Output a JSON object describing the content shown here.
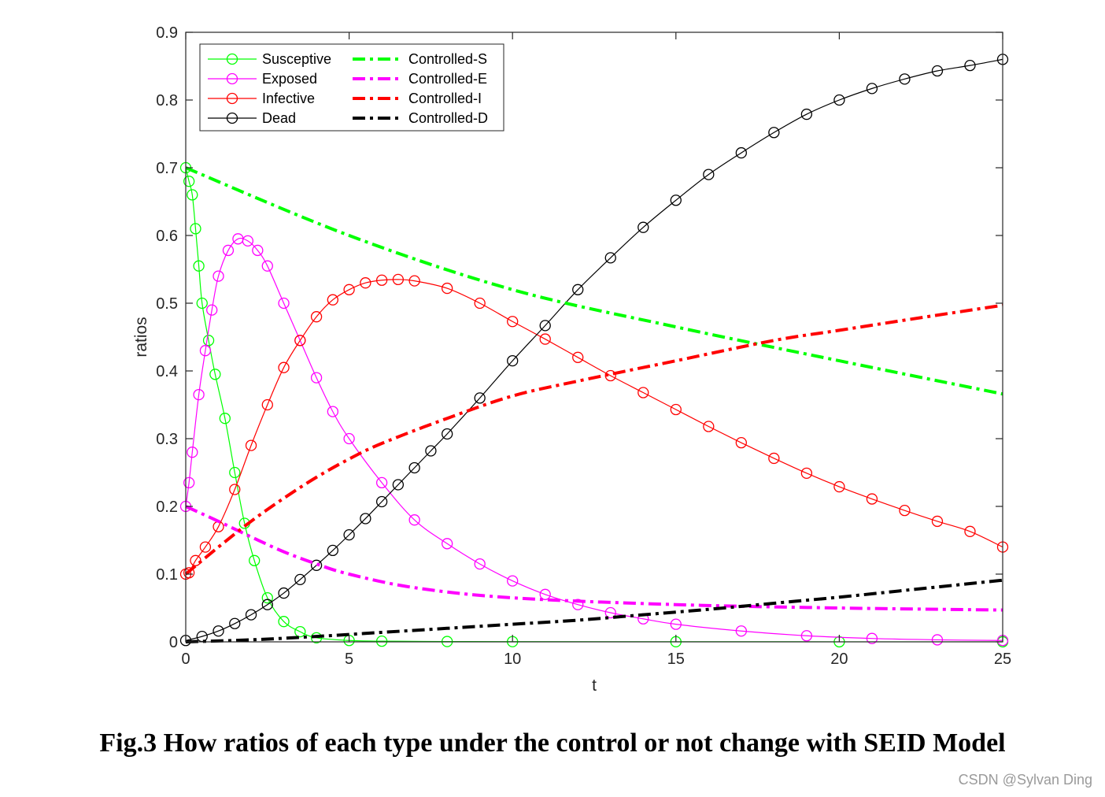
{
  "chart_data": {
    "type": "line",
    "xlabel": "t",
    "ylabel": "ratios",
    "xlim": [
      0,
      25
    ],
    "ylim": [
      0,
      0.9
    ],
    "xticks": [
      0,
      5,
      10,
      15,
      20,
      25
    ],
    "yticks": [
      0,
      0.1,
      0.2,
      0.3,
      0.4,
      0.5,
      0.6,
      0.7,
      0.8,
      0.9
    ],
    "ytick_labels": [
      "0",
      "0.1",
      "0.2",
      "0.3",
      "0.4",
      "0.5",
      "0.6",
      "0.7",
      "0.8",
      "0.9"
    ],
    "grid": false,
    "legend_position": "top-left",
    "series": [
      {
        "name": "Susceptive",
        "color": "#00ff00",
        "style": "solid-circle",
        "x": [
          0,
          0.1,
          0.2,
          0.3,
          0.4,
          0.5,
          0.7,
          0.9,
          1.2,
          1.5,
          1.8,
          2.1,
          2.5,
          3.0,
          3.5,
          4.0,
          5,
          6,
          8,
          10,
          15,
          20,
          25
        ],
        "y": [
          0.7,
          0.68,
          0.66,
          0.61,
          0.555,
          0.5,
          0.445,
          0.395,
          0.33,
          0.25,
          0.175,
          0.12,
          0.065,
          0.03,
          0.015,
          0.006,
          0.002,
          0.001,
          0.0005,
          0.0003,
          0.0002,
          0.0001,
          0.0001
        ]
      },
      {
        "name": "Exposed",
        "color": "#ff00ff",
        "style": "solid-circle",
        "x": [
          0,
          0.1,
          0.2,
          0.4,
          0.6,
          0.8,
          1.0,
          1.3,
          1.6,
          1.9,
          2.2,
          2.5,
          3.0,
          3.5,
          4.0,
          4.5,
          5,
          6,
          7,
          8,
          9,
          10,
          11,
          12,
          13,
          14,
          15,
          17,
          19,
          21,
          23,
          25
        ],
        "y": [
          0.2,
          0.235,
          0.28,
          0.365,
          0.43,
          0.49,
          0.54,
          0.578,
          0.595,
          0.592,
          0.578,
          0.555,
          0.5,
          0.445,
          0.39,
          0.34,
          0.3,
          0.235,
          0.18,
          0.145,
          0.115,
          0.09,
          0.07,
          0.055,
          0.043,
          0.034,
          0.026,
          0.016,
          0.009,
          0.005,
          0.003,
          0.002
        ]
      },
      {
        "name": "Infective",
        "color": "#ff0000",
        "style": "solid-circle",
        "x": [
          0,
          0.1,
          0.3,
          0.6,
          1.0,
          1.5,
          2.0,
          2.5,
          3.0,
          3.5,
          4.0,
          4.5,
          5.0,
          5.5,
          6.0,
          6.5,
          7.0,
          8.0,
          9.0,
          10,
          11,
          12,
          13,
          14,
          15,
          16,
          17,
          18,
          19,
          20,
          21,
          22,
          23,
          24,
          25
        ],
        "y": [
          0.1,
          0.102,
          0.12,
          0.14,
          0.17,
          0.225,
          0.29,
          0.35,
          0.405,
          0.445,
          0.48,
          0.505,
          0.52,
          0.53,
          0.534,
          0.535,
          0.533,
          0.522,
          0.5,
          0.473,
          0.447,
          0.42,
          0.393,
          0.368,
          0.343,
          0.318,
          0.294,
          0.271,
          0.249,
          0.229,
          0.211,
          0.194,
          0.178,
          0.163,
          0.14
        ]
      },
      {
        "name": "Dead",
        "color": "#000000",
        "style": "solid-circle",
        "x": [
          0,
          0.5,
          1.0,
          1.5,
          2.0,
          2.5,
          3.0,
          3.5,
          4.0,
          4.5,
          5.0,
          5.5,
          6.0,
          6.5,
          7.0,
          7.5,
          8.0,
          9.0,
          10,
          11,
          12,
          13,
          14,
          15,
          16,
          17,
          18,
          19,
          20,
          21,
          22,
          23,
          24,
          25
        ],
        "y": [
          0.002,
          0.008,
          0.016,
          0.027,
          0.04,
          0.055,
          0.072,
          0.092,
          0.113,
          0.135,
          0.158,
          0.182,
          0.207,
          0.232,
          0.257,
          0.282,
          0.307,
          0.36,
          0.415,
          0.467,
          0.52,
          0.567,
          0.612,
          0.652,
          0.69,
          0.722,
          0.752,
          0.779,
          0.8,
          0.817,
          0.831,
          0.843,
          0.851,
          0.86
        ]
      },
      {
        "name": "Controlled-S",
        "color": "#00ff00",
        "style": "dashdot",
        "x": [
          0,
          5,
          10,
          15,
          20,
          25
        ],
        "y": [
          0.7,
          0.6,
          0.52,
          0.465,
          0.415,
          0.366
        ]
      },
      {
        "name": "Controlled-E",
        "color": "#ff00ff",
        "style": "dashdot",
        "x": [
          0,
          1,
          2,
          3,
          4,
          5,
          7,
          10,
          15,
          20,
          25
        ],
        "y": [
          0.2,
          0.178,
          0.155,
          0.133,
          0.115,
          0.1,
          0.08,
          0.065,
          0.055,
          0.05,
          0.047
        ]
      },
      {
        "name": "Controlled-I",
        "color": "#ff0000",
        "style": "dashdot",
        "x": [
          0,
          1,
          2,
          3,
          4,
          5,
          6,
          8,
          10,
          12,
          15,
          18,
          20,
          22,
          25
        ],
        "y": [
          0.1,
          0.14,
          0.178,
          0.212,
          0.243,
          0.27,
          0.293,
          0.33,
          0.363,
          0.385,
          0.415,
          0.445,
          0.46,
          0.475,
          0.497
        ]
      },
      {
        "name": "Controlled-D",
        "color": "#000000",
        "style": "dashdot",
        "x": [
          0,
          2,
          4,
          6,
          8,
          10,
          12,
          14,
          16,
          18,
          20,
          22,
          24,
          25
        ],
        "y": [
          0,
          0.003,
          0.008,
          0.014,
          0.02,
          0.026,
          0.032,
          0.04,
          0.048,
          0.057,
          0.066,
          0.076,
          0.086,
          0.091
        ]
      }
    ]
  },
  "caption": "Fig.3 How ratios of each type under the control or not change with SEID Model",
  "watermark": "CSDN @Sylvan Ding"
}
